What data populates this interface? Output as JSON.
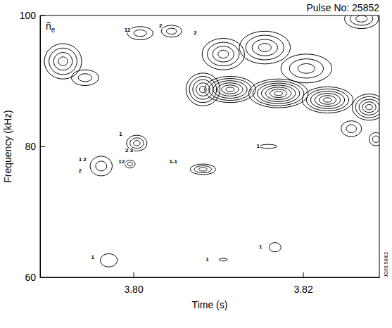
{
  "chart_data": {
    "type": "contour",
    "title": "Pulse No: 25852",
    "variable": {
      "symbol": "ñ",
      "subscript": "e"
    },
    "x_label": "Time (s)",
    "y_label": "Frequency (kHz)",
    "figure_code": "JG93.568/2",
    "color": "#000000",
    "xlim": [
      3.789,
      3.829
    ],
    "xticks": [
      {
        "value": 3.8,
        "label": "3.80"
      },
      {
        "value": 3.82,
        "label": "3.82"
      }
    ],
    "ylim": [
      60,
      100
    ],
    "yticks": [
      60,
      80,
      100
    ],
    "contours": [
      {
        "t": 3.7917,
        "f": 93.0,
        "dt": 0.0022,
        "df": 2.7,
        "levels": 4
      },
      {
        "t": 3.7943,
        "f": 90.5,
        "dt": 0.0016,
        "df": 1.2,
        "levels": 2
      },
      {
        "t": 3.8008,
        "f": 97.3,
        "dt": 0.0015,
        "df": 1.0,
        "levels": 2
      },
      {
        "t": 3.8045,
        "f": 97.6,
        "dt": 0.0012,
        "df": 0.9,
        "levels": 2
      },
      {
        "t": 3.8106,
        "f": 94.1,
        "dt": 0.0025,
        "df": 2.4,
        "levels": 4
      },
      {
        "t": 3.8155,
        "f": 95.1,
        "dt": 0.003,
        "df": 2.5,
        "levels": 4
      },
      {
        "t": 3.8204,
        "f": 91.9,
        "dt": 0.003,
        "df": 2.2,
        "levels": 3
      },
      {
        "t": 3.8082,
        "f": 88.7,
        "dt": 0.002,
        "df": 2.5,
        "levels": 5
      },
      {
        "t": 3.8114,
        "f": 88.7,
        "dt": 0.003,
        "df": 2.0,
        "levels": 6
      },
      {
        "t": 3.8171,
        "f": 88.1,
        "dt": 0.0035,
        "df": 2.2,
        "levels": 7
      },
      {
        "t": 3.8229,
        "f": 87.1,
        "dt": 0.003,
        "df": 2.0,
        "levels": 6
      },
      {
        "t": 3.8278,
        "f": 86.0,
        "dt": 0.002,
        "df": 2.0,
        "levels": 5
      },
      {
        "t": 3.8269,
        "f": 99.5,
        "dt": 0.002,
        "df": 1.5,
        "levels": 3
      },
      {
        "t": 3.8257,
        "f": 82.7,
        "dt": 0.0012,
        "df": 1.2,
        "levels": 2
      },
      {
        "t": 3.8286,
        "f": 81.1,
        "dt": 0.0008,
        "df": 1.0,
        "levels": 2
      },
      {
        "t": 3.7962,
        "f": 77.0,
        "dt": 0.0013,
        "df": 1.5,
        "levels": 2
      },
      {
        "t": 3.8004,
        "f": 80.5,
        "dt": 0.0012,
        "df": 1.2,
        "levels": 3
      },
      {
        "t": 3.7996,
        "f": 77.3,
        "dt": 0.0006,
        "df": 0.6,
        "levels": 2
      },
      {
        "t": 3.8082,
        "f": 76.5,
        "dt": 0.0015,
        "df": 0.8,
        "levels": 3
      },
      {
        "t": 3.8159,
        "f": 80.0,
        "dt": 0.001,
        "df": 0.3,
        "levels": 1
      },
      {
        "t": 3.7971,
        "f": 62.6,
        "dt": 0.001,
        "df": 1.0,
        "levels": 1
      },
      {
        "t": 3.8106,
        "f": 62.7,
        "dt": 0.0005,
        "df": 0.2,
        "levels": 1
      },
      {
        "t": 3.8167,
        "f": 64.6,
        "dt": 0.0007,
        "df": 0.7,
        "levels": 1
      }
    ],
    "annotations": [
      {
        "text": "12",
        "t": 3.7993,
        "f": 97.8
      },
      {
        "text": "2",
        "t": 3.8032,
        "f": 98.4
      },
      {
        "text": "2",
        "t": 3.8073,
        "f": 97.3
      },
      {
        "text": "1",
        "t": 3.7985,
        "f": 81.8
      },
      {
        "text": "2 3",
        "t": 3.7995,
        "f": 79.4
      },
      {
        "text": "1 2",
        "t": 3.794,
        "f": 78.0
      },
      {
        "text": "2",
        "t": 3.7937,
        "f": 76.2
      },
      {
        "text": "12",
        "t": 3.7986,
        "f": 77.6
      },
      {
        "text": "1-1",
        "t": 3.8047,
        "f": 77.6
      },
      {
        "text": "1",
        "t": 3.8147,
        "f": 80.0
      },
      {
        "text": "1",
        "t": 3.7952,
        "f": 63.0
      },
      {
        "text": "1",
        "t": 3.8087,
        "f": 62.7
      },
      {
        "text": "1",
        "t": 3.815,
        "f": 64.6
      }
    ]
  }
}
